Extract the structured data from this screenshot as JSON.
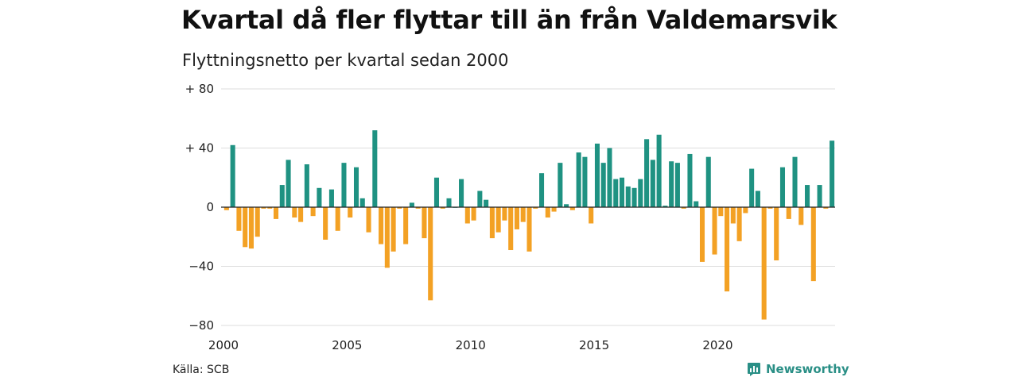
{
  "title": "Kvartal då fler flyttar till än från Valdemarsvik",
  "subtitle": "Flyttningsnetto per kvartal sedan 2000",
  "source": "Källa: SCB",
  "brand": "Newsworthy",
  "colors": {
    "positive": "#1f9282",
    "negative": "#f3a124",
    "grid": "#dcdcdc",
    "zero": "#222222",
    "brand": "#2a8f86"
  },
  "chart_data": {
    "type": "bar",
    "title": "",
    "xlabel": "",
    "ylabel": "",
    "ylim": [
      -80,
      80
    ],
    "yticks": [
      80,
      40,
      0,
      -40,
      -80
    ],
    "ytick_labels": [
      "+ 80",
      "+ 40",
      "0",
      "−40",
      "−80"
    ],
    "xticks": [
      "2000",
      "2005",
      "2010",
      "2015",
      "2020"
    ],
    "grid": true,
    "start": "2000 Q1",
    "values": [
      -2,
      42,
      -16,
      -27,
      -28,
      -20,
      -1,
      -1,
      -8,
      15,
      32,
      -7,
      -10,
      29,
      -6,
      13,
      -22,
      12,
      -16,
      30,
      -7,
      27,
      6,
      -17,
      52,
      -25,
      -41,
      -30,
      -1,
      -25,
      3,
      -1,
      -21,
      -63,
      20,
      -1,
      6,
      0,
      19,
      -11,
      -9,
      11,
      5,
      -21,
      -17,
      -9,
      -29,
      -15,
      -10,
      -30,
      -1,
      23,
      -7,
      -3,
      30,
      2,
      -2,
      37,
      34,
      -11,
      43,
      30,
      40,
      19,
      20,
      14,
      13,
      19,
      46,
      32,
      49,
      1,
      31,
      30,
      -1,
      36,
      4,
      -37,
      34,
      -32,
      -6,
      -57,
      -11,
      -23,
      -4,
      26,
      11,
      -76,
      -1,
      -36,
      27,
      -8,
      34,
      -12,
      15,
      -50,
      15,
      -1,
      45
    ]
  }
}
